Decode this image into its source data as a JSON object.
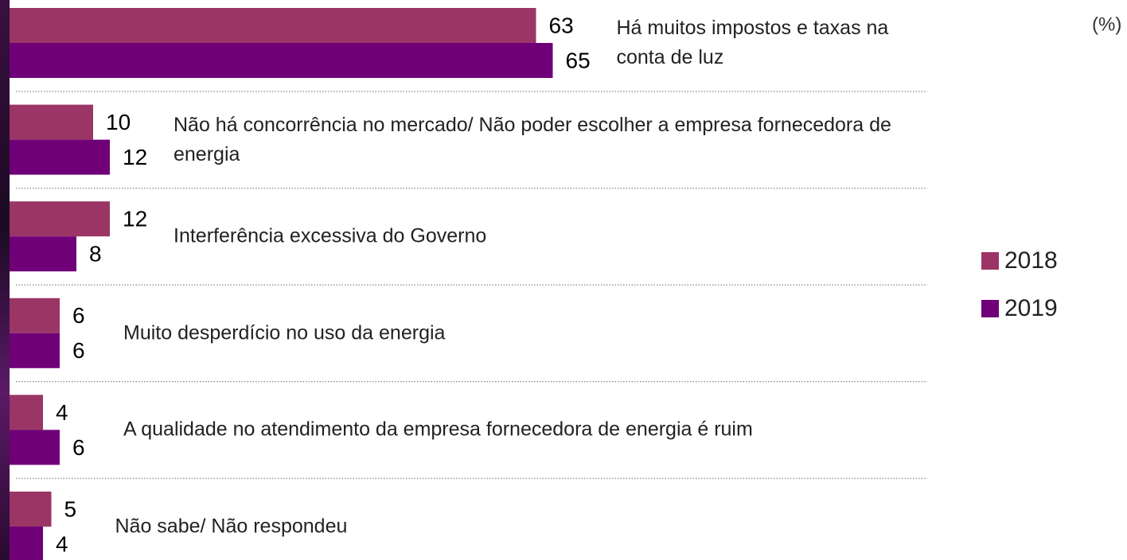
{
  "chart_data": {
    "type": "bar",
    "orientation": "horizontal",
    "unit_label": "(%)",
    "categories": [
      "Há muitos impostos e taxas na conta de luz",
      "Não há concorrência no mercado/ Não poder escolher a empresa fornecedora de energia",
      "Interferência excessiva do Governo",
      "Muito desperdício no uso da energia",
      "A qualidade no atendimento da empresa fornecedora de energia é ruim",
      "Não sabe/ Não respondeu"
    ],
    "series": [
      {
        "name": "2018",
        "color": "#9b3565",
        "values": [
          63,
          10,
          12,
          6,
          4,
          5
        ]
      },
      {
        "name": "2019",
        "color": "#6f0078",
        "values": [
          65,
          12,
          8,
          6,
          6,
          4
        ]
      }
    ],
    "legend": "right"
  }
}
